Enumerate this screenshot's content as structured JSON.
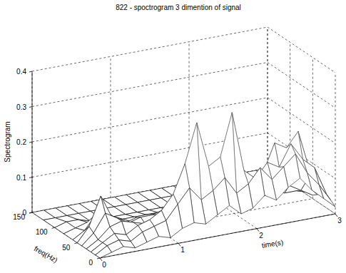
{
  "chart_data": {
    "type": "surface",
    "title": "822 - spoctrogram 3 dimention of signal",
    "x_label": "time(s)",
    "y_label": "freq(Hz)",
    "z_label": "Spectrogram",
    "xlim": [
      0,
      3
    ],
    "xticks": [
      0,
      1,
      2,
      3
    ],
    "ylim": [
      0,
      150
    ],
    "yticks": [
      0,
      50,
      100,
      150
    ],
    "zlim": [
      0,
      0.4
    ],
    "zticks": [
      0,
      0.1,
      0.2,
      0.3,
      0.4
    ],
    "grid": true,
    "color": "#000000",
    "x": [
      0,
      0.15,
      0.3,
      0.45,
      0.6,
      0.75,
      0.9,
      1.05,
      1.2,
      1.35,
      1.5,
      1.65,
      1.8,
      1.95,
      2.1,
      2.25,
      2.4,
      2.55,
      2.7,
      2.85,
      3.0
    ],
    "y": [
      0,
      10,
      20,
      30,
      40,
      50,
      60,
      80,
      100,
      125,
      150
    ],
    "z": [
      [
        0,
        0.01,
        0.02,
        0.01,
        0.02,
        0.03,
        0.02,
        0.04,
        0.05,
        0.04,
        0.06,
        0.08,
        0.05,
        0.06,
        0.09,
        0.07,
        0.1,
        0.12,
        0.08,
        0.05,
        0.02
      ],
      [
        0,
        0.02,
        0.03,
        0.02,
        0.04,
        0.05,
        0.06,
        0.1,
        0.14,
        0.1,
        0.12,
        0.15,
        0.1,
        0.12,
        0.16,
        0.12,
        0.15,
        0.18,
        0.12,
        0.08,
        0.03
      ],
      [
        0,
        0.02,
        0.04,
        0.03,
        0.05,
        0.06,
        0.08,
        0.12,
        0.2,
        0.31,
        0.18,
        0.2,
        0.32,
        0.15,
        0.12,
        0.16,
        0.14,
        0.2,
        0.15,
        0.12,
        0.04
      ],
      [
        0,
        0.02,
        0.05,
        0.06,
        0.05,
        0.04,
        0.06,
        0.08,
        0.12,
        0.2,
        0.12,
        0.13,
        0.2,
        0.1,
        0.08,
        0.12,
        0.2,
        0.18,
        0.22,
        0.1,
        0.03
      ],
      [
        0,
        0.03,
        0.08,
        0.06,
        0.04,
        0.05,
        0.05,
        0.06,
        0.08,
        0.1,
        0.06,
        0.08,
        0.1,
        0.06,
        0.07,
        0.08,
        0.1,
        0.12,
        0.1,
        0.06,
        0.02
      ],
      [
        0,
        0.04,
        0.12,
        0.05,
        0.03,
        0.04,
        0.03,
        0.04,
        0.05,
        0.04,
        0.03,
        0.05,
        0.06,
        0.04,
        0.05,
        0.06,
        0.05,
        0.07,
        0.05,
        0.03,
        0.01
      ],
      [
        0,
        0.02,
        0.06,
        0.03,
        0.02,
        0.02,
        0.02,
        0.03,
        0.02,
        0.02,
        0.02,
        0.03,
        0.03,
        0.02,
        0.03,
        0.03,
        0.02,
        0.03,
        0.02,
        0.02,
        0.01
      ],
      [
        0,
        0.01,
        0.02,
        0.01,
        0.01,
        0.01,
        0.01,
        0.01,
        0.01,
        0.01,
        0.01,
        0.01,
        0.01,
        0.01,
        0.01,
        0.01,
        0.01,
        0.01,
        0.01,
        0.01,
        0
      ],
      [
        0,
        0.01,
        0.01,
        0,
        0,
        0,
        0,
        0,
        0,
        0,
        0,
        0,
        0,
        0,
        0,
        0,
        0,
        0,
        0,
        0,
        0
      ],
      [
        0,
        0,
        0,
        0,
        0,
        0,
        0,
        0,
        0,
        0,
        0,
        0,
        0,
        0,
        0,
        0,
        0,
        0,
        0,
        0,
        0
      ],
      [
        0,
        0,
        0,
        0,
        0,
        0,
        0,
        0,
        0,
        0,
        0,
        0,
        0,
        0,
        0,
        0,
        0,
        0,
        0,
        0,
        0
      ]
    ]
  }
}
